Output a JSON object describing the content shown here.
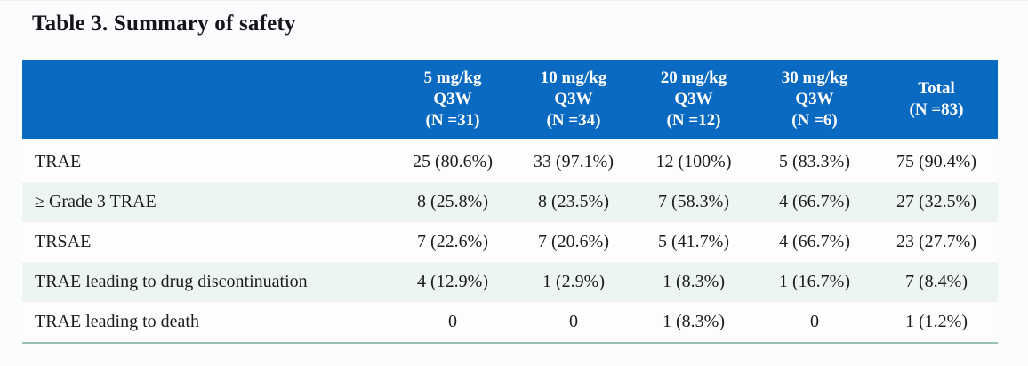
{
  "title": "Table 3. Summary of safety",
  "table": {
    "column_headers": [
      "",
      "5 mg/kg\nQ3W\n(N =31)",
      "10 mg/kg\nQ3W\n(N =34)",
      "20 mg/kg\nQ3W\n(N =12)",
      "30 mg/kg\nQ3W\n(N =6)",
      "Total\n(N =83)"
    ],
    "rows": [
      {
        "label": "TRAE",
        "values": [
          "25 (80.6%)",
          "33 (97.1%)",
          "12 (100%)",
          "5 (83.3%)",
          "75 (90.4%)"
        ]
      },
      {
        "label": "≥ Grade 3 TRAE",
        "values": [
          "8 (25.8%)",
          "8 (23.5%)",
          "7 (58.3%)",
          "4 (66.7%)",
          "27 (32.5%)"
        ]
      },
      {
        "label": "TRSAE",
        "values": [
          "7 (22.6%)",
          "7 (20.6%)",
          "5 (41.7%)",
          "4 (66.7%)",
          "23 (27.7%)"
        ]
      },
      {
        "label": "TRAE leading to drug discontinuation",
        "values": [
          "4 (12.9%)",
          "1 (2.9%)",
          "1 (8.3%)",
          "1 (16.7%)",
          "7 (8.4%)"
        ]
      },
      {
        "label": "TRAE leading to death",
        "values": [
          "0",
          "0",
          "1 (8.3%)",
          "0",
          "1 (1.2%)"
        ]
      }
    ]
  },
  "colors": {
    "header_bg": "#0a6ac1",
    "header_text": "#ffffff",
    "row_alt_bg": "#edf5f1",
    "row_bg": "#fdfdfd",
    "bottom_border": "#95c1b6",
    "body_text": "#1b1b1f"
  }
}
